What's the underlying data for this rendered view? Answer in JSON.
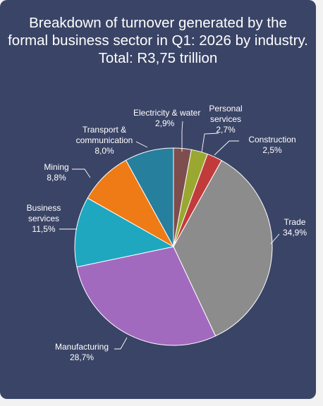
{
  "chart_data": {
    "type": "pie",
    "title": "Breakdown of turnover generated by the formal business sector in Q1: 2026 by industry. Total: R3,75 trillion",
    "slices": [
      {
        "name": "Electricity & water",
        "value": 2.9,
        "value_label": "2,9%",
        "color": "#7e4e4e"
      },
      {
        "name": "Personal services",
        "value": 2.7,
        "value_label": "2,7%",
        "color": "#9aa832"
      },
      {
        "name": "Construction",
        "value": 2.5,
        "value_label": "2,5%",
        "color": "#c23b3b"
      },
      {
        "name": "Trade",
        "value": 34.9,
        "value_label": "34,9%",
        "color": "#8c8c8c"
      },
      {
        "name": "Manufacturing",
        "value": 28.7,
        "value_label": "28,7%",
        "color": "#a26abf"
      },
      {
        "name": "Business services",
        "value": 11.5,
        "value_label": "11,5%",
        "color": "#1fa7c0"
      },
      {
        "name": "Mining",
        "value": 8.8,
        "value_label": "8,8%",
        "color": "#ee7b16"
      },
      {
        "name": "Transport & communication",
        "value": 8.0,
        "value_label": "8,0%",
        "color": "#267f9c"
      }
    ]
  }
}
